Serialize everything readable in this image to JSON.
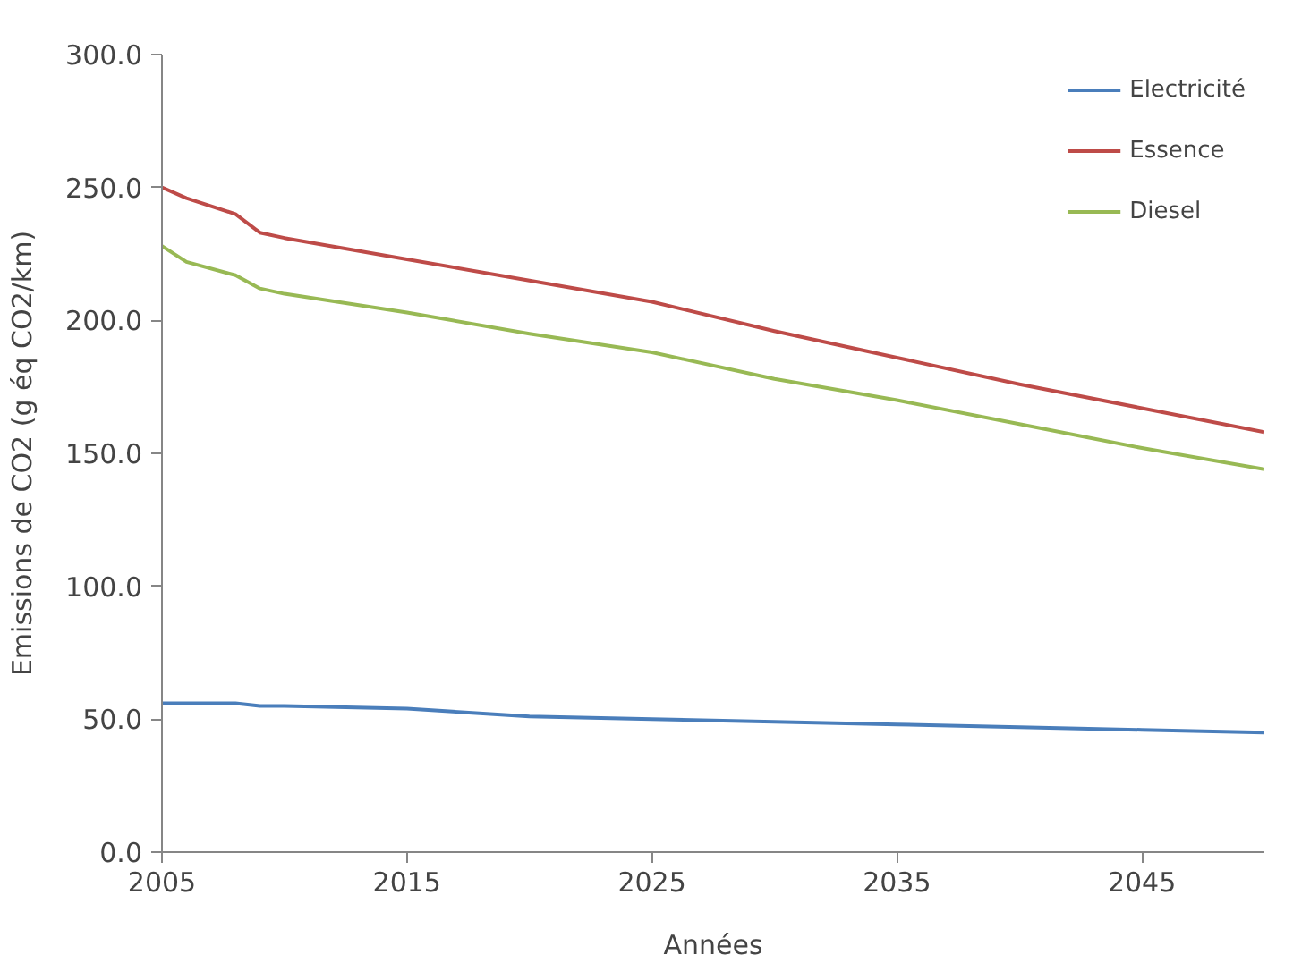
{
  "chart_data": {
    "type": "line",
    "xlabel": "Années",
    "ylabel": "Emissions de CO2 (g éq CO2/km)",
    "xlim": [
      2005,
      2050
    ],
    "xticks": [
      2005,
      2015,
      2025,
      2035,
      2045
    ],
    "ylim": [
      0,
      300
    ],
    "yticks": [
      {
        "value": 0,
        "label": "0.0"
      },
      {
        "value": 50,
        "label": "50.0"
      },
      {
        "value": 100,
        "label": "100.0"
      },
      {
        "value": 150,
        "label": "150.0"
      },
      {
        "value": 200,
        "label": "200.0"
      },
      {
        "value": 250,
        "label": "250.0"
      },
      {
        "value": 300,
        "label": "300.0"
      }
    ],
    "x": [
      2005,
      2006,
      2008,
      2009,
      2010,
      2015,
      2020,
      2025,
      2030,
      2035,
      2040,
      2045,
      2050
    ],
    "grid": false,
    "legend": "top right",
    "marker": "none",
    "line_style": "solid",
    "series": [
      {
        "name": "Electricité",
        "color": "#4a7ebb",
        "values": [
          56,
          56,
          56,
          55,
          55,
          54,
          51,
          50,
          49,
          48,
          47,
          46,
          45
        ]
      },
      {
        "name": "Essence",
        "color": "#be4b48",
        "values": [
          250,
          246,
          240,
          233,
          231,
          223,
          215,
          207,
          196,
          186,
          176,
          167,
          158
        ]
      },
      {
        "name": "Diesel",
        "color": "#98b954",
        "values": [
          228,
          222,
          217,
          212,
          210,
          203,
          195,
          188,
          178,
          170,
          161,
          152,
          144
        ]
      }
    ]
  }
}
